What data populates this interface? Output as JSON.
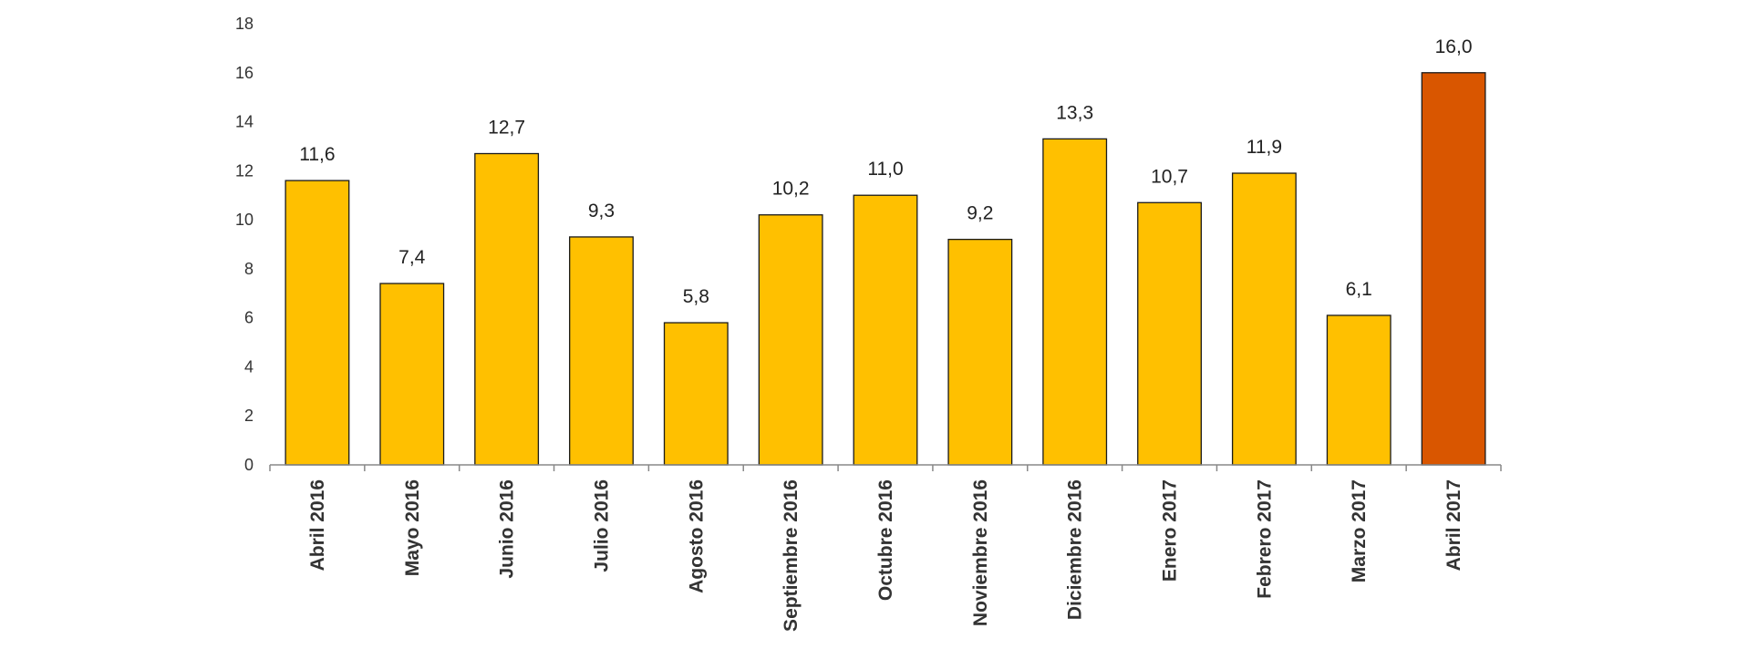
{
  "chart_data": {
    "type": "bar",
    "categories": [
      "Abril 2016",
      "Mayo 2016",
      "Junio 2016",
      "Julio 2016",
      "Agosto 2016",
      "Septiembre 2016",
      "Octubre 2016",
      "Noviembre 2016",
      "Diciembre 2016",
      "Enero 2017",
      "Febrero 2017",
      "Marzo 2017",
      "Abril 2017"
    ],
    "values": [
      11.6,
      7.4,
      12.7,
      9.3,
      5.8,
      10.2,
      11.0,
      9.2,
      13.3,
      10.7,
      11.9,
      6.1,
      16.0
    ],
    "data_labels": [
      "11,6",
      "7,4",
      "12,7",
      "9,3",
      "5,8",
      "10,2",
      "11,0",
      "9,2",
      "13,3",
      "10,7",
      "11,9",
      "6,1",
      "16,0"
    ],
    "yticks": [
      0,
      2,
      4,
      6,
      8,
      10,
      12,
      14,
      16,
      18
    ],
    "ylim": [
      0,
      18
    ],
    "title": "",
    "xlabel": "",
    "ylabel": "",
    "grid": false,
    "legend": "none",
    "colors": {
      "bar": "#FFC000",
      "highlight_bar": "#D95600",
      "bar_stroke": "#1a1a1a",
      "axis": "#888888"
    },
    "highlight_index": 12
  }
}
